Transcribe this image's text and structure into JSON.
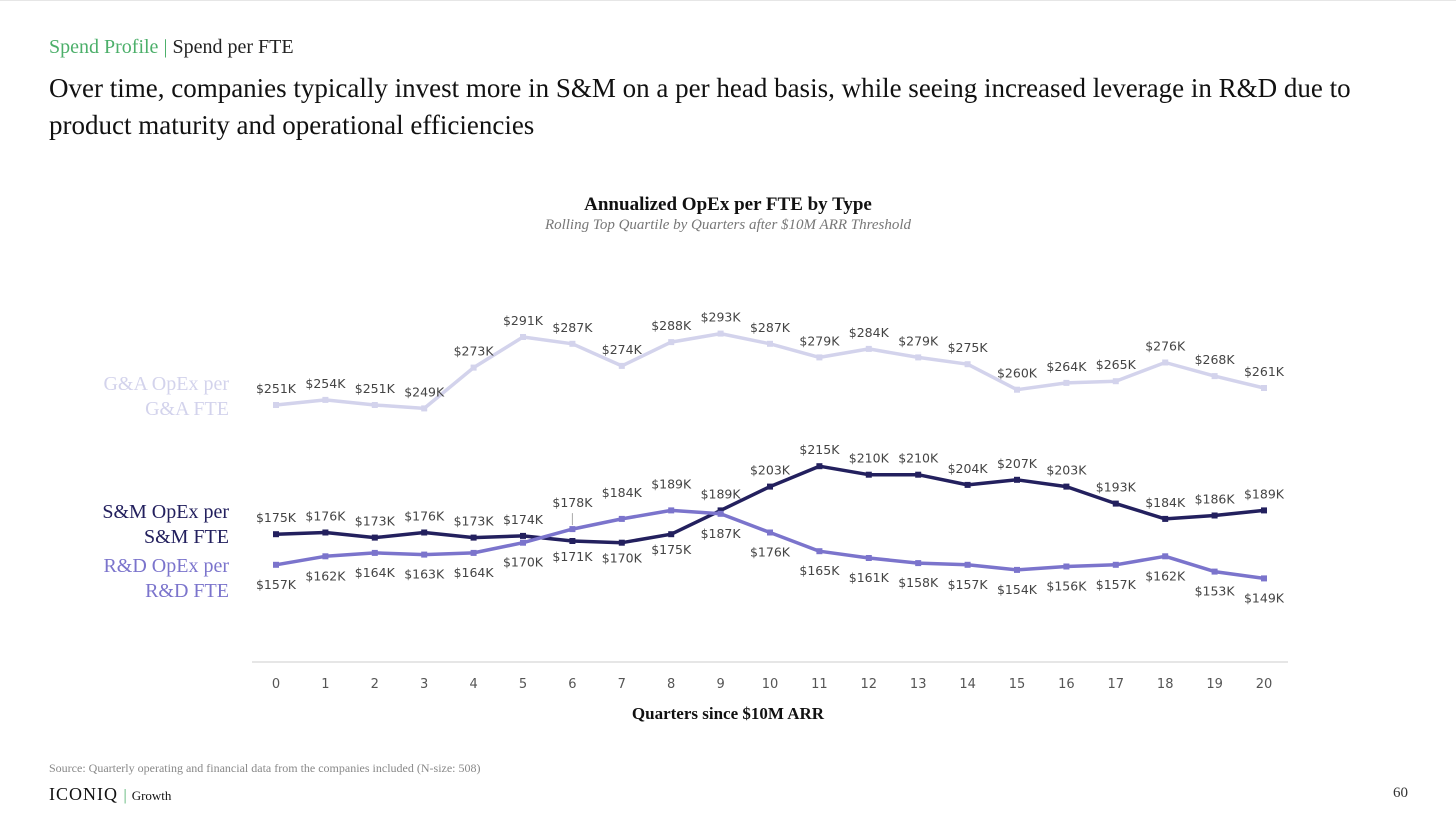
{
  "header": {
    "section": "Spend Profile",
    "separator": "|",
    "subsection": "Spend per FTE",
    "headline": "Over time, companies typically invest more in S&M on a per head basis, while seeing increased leverage in R&D due to product maturity and operational efficiencies"
  },
  "chart_data": {
    "type": "line",
    "title": "Annualized OpEx per FTE by Type",
    "subtitle": "Rolling Top Quartile by Quarters after $10M ARR Threshold",
    "xlabel": "Quarters since $10M ARR",
    "ylabel": "",
    "x": [
      0,
      1,
      2,
      3,
      4,
      5,
      6,
      7,
      8,
      9,
      10,
      11,
      12,
      13,
      14,
      15,
      16,
      17,
      18,
      19,
      20
    ],
    "unit": "$K",
    "series": [
      {
        "name": "G&A OpEx per G&A FTE",
        "name_lines": [
          "G&A OpEx per",
          "G&A FTE"
        ],
        "color": "#d3d3ec",
        "values": [
          251,
          254,
          251,
          249,
          273,
          291,
          287,
          274,
          288,
          293,
          287,
          279,
          284,
          279,
          275,
          260,
          264,
          265,
          276,
          268,
          261
        ]
      },
      {
        "name": "S&M OpEx per S&M FTE",
        "name_lines": [
          "S&M OpEx per",
          "S&M FTE"
        ],
        "color": "#23205e",
        "values": [
          175,
          176,
          173,
          176,
          173,
          174,
          171,
          170,
          175,
          189,
          203,
          215,
          210,
          210,
          204,
          207,
          203,
          193,
          184,
          186,
          189
        ]
      },
      {
        "name": "R&D OpEx per R&D FTE",
        "name_lines": [
          "R&D OpEx per",
          "R&D FTE"
        ],
        "color": "#7b74cc",
        "values": [
          157,
          162,
          164,
          163,
          164,
          170,
          178,
          184,
          189,
          187,
          176,
          165,
          161,
          158,
          157,
          154,
          156,
          157,
          162,
          153,
          149
        ]
      }
    ],
    "grid": false,
    "legend": "left"
  },
  "footer": {
    "source": "Source: Quarterly operating and financial data from the companies included (N-size: 508)",
    "logo": "ICONIQ",
    "logo_sub": "Growth",
    "page": "60"
  }
}
